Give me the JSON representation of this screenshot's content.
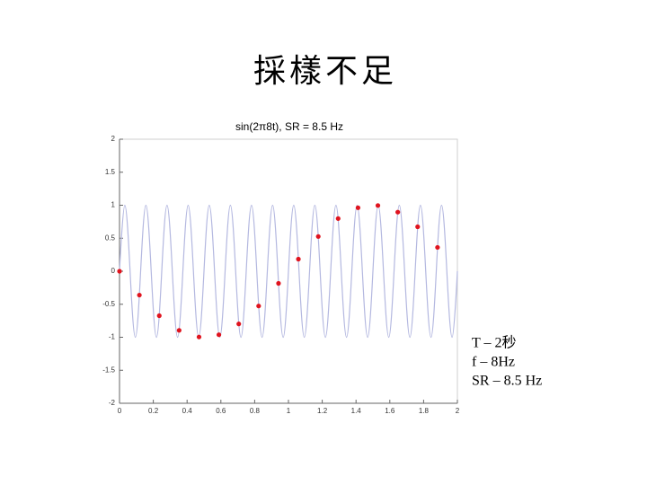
{
  "slide_title": "採樣不足",
  "chart_data": {
    "type": "line",
    "title": "sin(2π8t), SR = 8.5 Hz",
    "xlim": [
      0,
      2
    ],
    "xticks": [
      0,
      0.2,
      0.4,
      0.6,
      0.8,
      1,
      1.2,
      1.4,
      1.6,
      1.8,
      2
    ],
    "ylim": [
      -2,
      2
    ],
    "yticks": [
      -2,
      -1.5,
      -1,
      -0.5,
      0,
      0.5,
      1,
      1.5,
      2
    ],
    "grid": false,
    "series": [
      {
        "style": "smooth-line",
        "color": "#b4b8e0",
        "x": [
          0,
          0.03125,
          0.0625,
          0.09375,
          0.125,
          0.15625,
          0.1875,
          0.21875,
          0.25,
          0.28125,
          0.3125,
          0.34375,
          0.375,
          0.40625,
          0.4375,
          0.46875,
          0.5,
          0.53125,
          0.5625,
          0.59375,
          0.625,
          0.65625,
          0.6875,
          0.71875,
          0.75,
          0.78125,
          0.8125,
          0.84375,
          0.875,
          0.90625,
          0.9375,
          0.96875,
          1,
          1.03125,
          1.0625,
          1.09375,
          1.125,
          1.15625,
          1.1875,
          1.21875,
          1.25,
          1.28125,
          1.3125,
          1.34375,
          1.375,
          1.40625,
          1.4375,
          1.46875,
          1.5,
          1.53125,
          1.5625,
          1.59375,
          1.625,
          1.65625,
          1.6875,
          1.71875,
          1.75,
          1.78125,
          1.8125,
          1.84375,
          1.875,
          1.90625,
          1.9375,
          1.96875,
          2
        ],
        "values": [
          0,
          1,
          0,
          -1,
          0,
          1,
          0,
          -1,
          0,
          1,
          0,
          -1,
          0,
          1,
          0,
          -1,
          0,
          1,
          0,
          -1,
          0,
          1,
          0,
          -1,
          0,
          1,
          0,
          -1,
          0,
          1,
          0,
          -1,
          0,
          1,
          0,
          -1,
          0,
          1,
          0,
          -1,
          0,
          1,
          0,
          -1,
          0,
          1,
          0,
          -1,
          0,
          1,
          0,
          -1,
          0,
          1,
          0,
          -1,
          0,
          1,
          0,
          -1,
          0,
          1,
          0,
          -1,
          0
        ]
      },
      {
        "style": "markers",
        "color": "#e0141e",
        "x": [
          0,
          0.1176,
          0.2353,
          0.3529,
          0.4706,
          0.5882,
          0.7059,
          0.8235,
          0.9412,
          1.0588,
          1.1765,
          1.2941,
          1.4118,
          1.5294,
          1.6471,
          1.7647,
          1.8824
        ],
        "values": [
          0,
          -0.3612,
          -0.6737,
          -0.8952,
          -0.9957,
          -0.9618,
          -0.798,
          -0.5264,
          -0.1837,
          0.1837,
          0.5264,
          0.798,
          0.9618,
          0.9957,
          0.8952,
          0.6737,
          0.3612
        ]
      }
    ]
  },
  "notes": {
    "lines": [
      "T – 2秒",
      "f – 8Hz",
      "SR – 8.5 Hz"
    ]
  }
}
